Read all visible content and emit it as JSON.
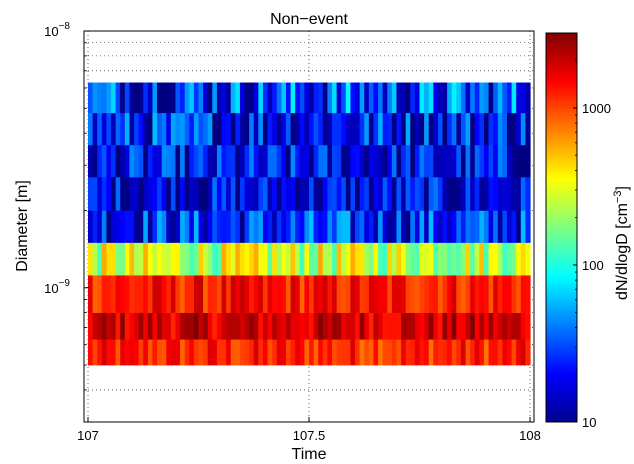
{
  "chart_data": {
    "type": "heatmap",
    "title": "Non−event",
    "xlabel": "Time",
    "ylabel": "Diameter [m]",
    "xlim": [
      107,
      108
    ],
    "ylim": [
      3e-10,
      1e-08
    ],
    "yscale": "log",
    "x_tick_labels": [
      "107",
      "107.5",
      "108"
    ],
    "y_tick_labels": [
      {
        "base": "10",
        "exp": "−8"
      },
      {
        "base": "10",
        "exp": "−9"
      }
    ],
    "grid": "dotted",
    "data_x_range": [
      107,
      108
    ],
    "colorbar": {
      "label_main": "dN/dlogD [cm",
      "label_exp": "−3",
      "label_end": "]",
      "scale": "log",
      "range": [
        10,
        3000
      ],
      "ticks": [
        "10",
        "100",
        "1000"
      ],
      "colormap": "jet"
    },
    "rows": [
      {
        "d_low": 5e-10,
        "d_high": 6.3e-10,
        "base_value": 1200,
        "spread": 0.2
      },
      {
        "d_low": 6.3e-10,
        "d_high": 8e-10,
        "base_value": 1900,
        "spread": 0.2
      },
      {
        "d_low": 8e-10,
        "d_high": 1.12e-09,
        "base_value": 1300,
        "spread": 0.2
      },
      {
        "d_low": 1.12e-09,
        "d_high": 1.5e-09,
        "base_value": 260,
        "spread": 0.35
      },
      {
        "d_low": 1.5e-09,
        "d_high": 2e-09,
        "base_value": 25,
        "spread": 0.4
      },
      {
        "d_low": 2e-09,
        "d_high": 2.7e-09,
        "base_value": 18,
        "spread": 0.35
      },
      {
        "d_low": 2.7e-09,
        "d_high": 3.6e-09,
        "base_value": 18,
        "spread": 0.4
      },
      {
        "d_low": 3.6e-09,
        "d_high": 4.8e-09,
        "base_value": 22,
        "spread": 0.45
      },
      {
        "d_low": 4.8e-09,
        "d_high": 6.3e-09,
        "base_value": 28,
        "spread": 0.5
      }
    ],
    "n_columns": 96
  }
}
